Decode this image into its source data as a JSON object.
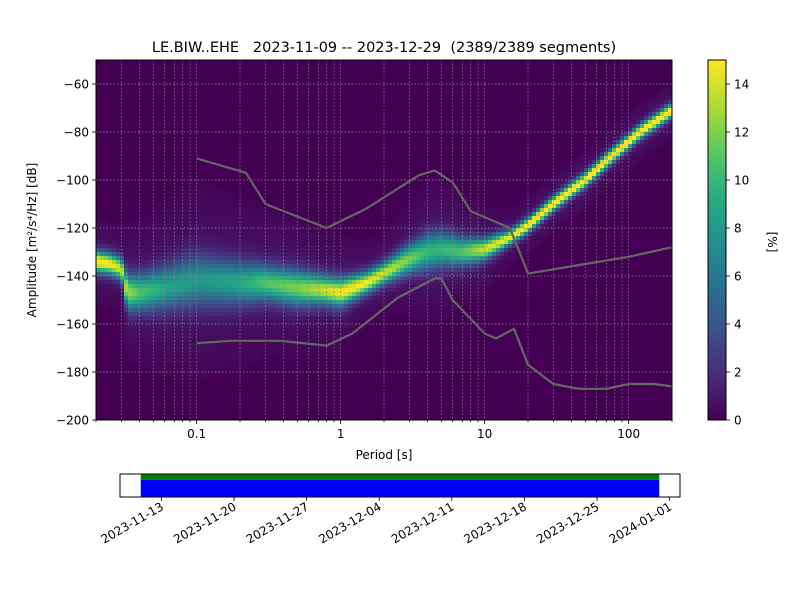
{
  "chart_data": [
    {
      "type": "heatmap",
      "title": "LE.BIW..EHE   2023-11-09 -- 2023-12-29  (2389/2389 segments)",
      "xlabel": "Period [s]",
      "ylabel": "Amplitude [m²/s⁴/Hz] [dB]",
      "xscale": "log",
      "xlim": [
        0.02,
        200
      ],
      "ylim": [
        -200,
        -50
      ],
      "xticks": [
        0.1,
        1,
        10,
        100
      ],
      "xtick_labels": [
        "0.1",
        "1",
        "10",
        "100"
      ],
      "yticks": [
        -200,
        -180,
        -160,
        -140,
        -120,
        -100,
        -80,
        -60
      ],
      "ytick_labels": [
        "−200",
        "−180",
        "−160",
        "−140",
        "−120",
        "−100",
        "−80",
        "−60"
      ],
      "grid": true,
      "background_color": "#440154",
      "colorbar": {
        "label": "[%]",
        "range": [
          0,
          15
        ],
        "ticks": [
          0,
          2,
          4,
          6,
          8,
          10,
          12,
          14
        ],
        "tick_labels": [
          "0",
          "2",
          "4",
          "6",
          "8",
          "10",
          "12",
          "14"
        ],
        "colormap": "viridis"
      },
      "density_band": [
        {
          "period": 0.02,
          "center": -134,
          "half_width": 3,
          "peak": 15
        },
        {
          "period": 0.025,
          "center": -135,
          "half_width": 3,
          "peak": 14
        },
        {
          "period": 0.03,
          "center": -137,
          "half_width": 3,
          "peak": 13
        },
        {
          "period": 0.033,
          "center": -147,
          "half_width": 5,
          "peak": 12
        },
        {
          "period": 0.04,
          "center": -147,
          "half_width": 5,
          "peak": 10
        },
        {
          "period": 0.06,
          "center": -145,
          "half_width": 6,
          "peak": 8
        },
        {
          "period": 0.1,
          "center": -142,
          "half_width": 7,
          "peak": 7
        },
        {
          "period": 0.2,
          "center": -143,
          "half_width": 6,
          "peak": 8
        },
        {
          "period": 0.3,
          "center": -143,
          "half_width": 5,
          "peak": 10
        },
        {
          "period": 0.5,
          "center": -145,
          "half_width": 5,
          "peak": 11
        },
        {
          "period": 0.8,
          "center": -146,
          "half_width": 4,
          "peak": 13
        },
        {
          "period": 1,
          "center": -147,
          "half_width": 4,
          "peak": 14
        },
        {
          "period": 1.5,
          "center": -143,
          "half_width": 3,
          "peak": 14
        },
        {
          "period": 2,
          "center": -139,
          "half_width": 3,
          "peak": 13
        },
        {
          "period": 3,
          "center": -133,
          "half_width": 4,
          "peak": 11
        },
        {
          "period": 4,
          "center": -130,
          "half_width": 5,
          "peak": 9
        },
        {
          "period": 5,
          "center": -129,
          "half_width": 5,
          "peak": 9
        },
        {
          "period": 7,
          "center": -130,
          "half_width": 4,
          "peak": 10
        },
        {
          "period": 10,
          "center": -129,
          "half_width": 3,
          "peak": 13
        },
        {
          "period": 15,
          "center": -124,
          "half_width": 2,
          "peak": 14
        },
        {
          "period": 20,
          "center": -119,
          "half_width": 2,
          "peak": 15
        },
        {
          "period": 30,
          "center": -110,
          "half_width": 2,
          "peak": 15
        },
        {
          "period": 50,
          "center": -100,
          "half_width": 2,
          "peak": 15
        },
        {
          "period": 80,
          "center": -89,
          "half_width": 2,
          "peak": 15
        },
        {
          "period": 120,
          "center": -80,
          "half_width": 2,
          "peak": 15
        },
        {
          "period": 200,
          "center": -71,
          "half_width": 2,
          "peak": 15
        }
      ],
      "series": [
        {
          "color": "#666666",
          "points": [
            [
              0.1,
              -91
            ],
            [
              0.22,
              -97
            ],
            [
              0.3,
              -110
            ],
            [
              0.8,
              -120
            ],
            [
              1.5,
              -112
            ],
            [
              3.5,
              -98
            ],
            [
              4.5,
              -96
            ],
            [
              6,
              -101
            ],
            [
              8,
              -113
            ],
            [
              15,
              -120
            ],
            [
              20,
              -139
            ],
            [
              50,
              -135
            ],
            [
              100,
              -132
            ],
            [
              200,
              -128
            ]
          ]
        },
        {
          "color": "#666666",
          "points": [
            [
              0.1,
              -168
            ],
            [
              0.17,
              -167
            ],
            [
              0.38,
              -167
            ],
            [
              0.8,
              -169
            ],
            [
              1.2,
              -164
            ],
            [
              2.5,
              -149
            ],
            [
              4.5,
              -141
            ],
            [
              5,
              -141
            ],
            [
              6,
              -150
            ],
            [
              10,
              -164
            ],
            [
              12,
              -166
            ],
            [
              16,
              -162
            ],
            [
              20,
              -177
            ],
            [
              30,
              -185
            ],
            [
              45,
              -187
            ],
            [
              70,
              -187
            ],
            [
              100,
              -185
            ],
            [
              150,
              -185
            ],
            [
              200,
              -186
            ]
          ]
        }
      ]
    },
    {
      "type": "bar",
      "title": "",
      "xlabel": "",
      "ylabel": "",
      "x_range": [
        "2023-11-09",
        "2024-01-02"
      ],
      "xtick_labels": [
        "2023-11-13",
        "2023-11-20",
        "2023-11-27",
        "2023-12-04",
        "2023-12-11",
        "2023-12-18",
        "2023-12-25",
        "2024-01-01"
      ],
      "series": [
        {
          "color": "#008000",
          "start": "2023-11-11",
          "end": "2023-12-31"
        },
        {
          "color": "#0000ff",
          "start": "2023-11-11",
          "end": "2023-12-31"
        }
      ]
    }
  ]
}
